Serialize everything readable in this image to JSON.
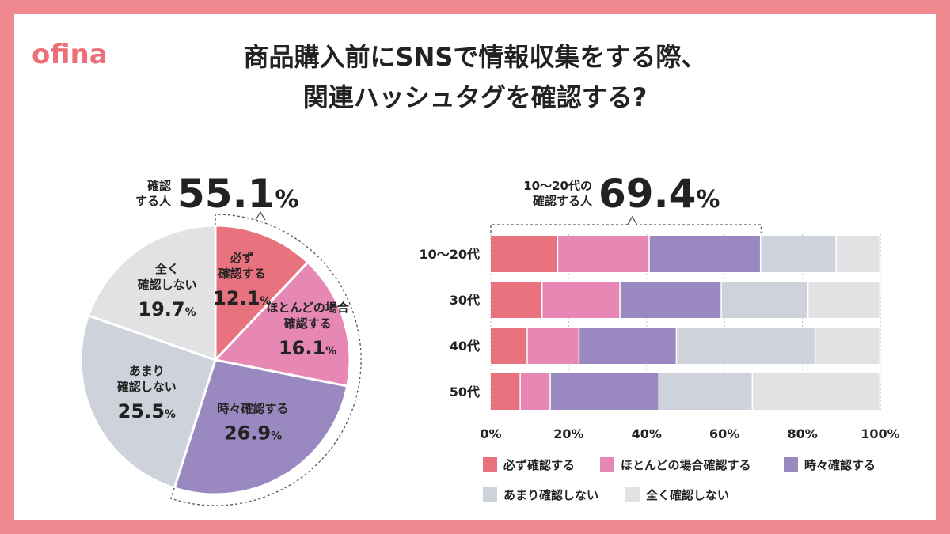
{
  "brand": {
    "logo": "ofina"
  },
  "title": {
    "line1": "商品購入前にSNSで情報収集をする際、",
    "line2": "関連ハッシュタグを確認する?"
  },
  "colors": {
    "frame": "#F08890",
    "panel": "#FFFFFF",
    "logo": "#EB6F79",
    "text": "#222222",
    "always": "#E8737E",
    "mostly": "#E688B3",
    "sometimes": "#9A88C0",
    "rarely": "#CDD2DB",
    "never": "#E2E2E4"
  },
  "pie_callout": {
    "label_line1": "確認",
    "label_line2": "する人",
    "value": "55.1",
    "unit": "%"
  },
  "bar_callout": {
    "label_line1": "10～20代の",
    "label_line2": "確認する人",
    "value": "69.4",
    "unit": "%"
  },
  "chart_data": [
    {
      "type": "pie",
      "title": "",
      "slices": [
        {
          "key": "always",
          "lines": [
            "必ず",
            "確認する"
          ],
          "value": 12.1,
          "value_label": "12.1",
          "unit": "%"
        },
        {
          "key": "mostly",
          "lines": [
            "ほとんどの場合",
            "確認する"
          ],
          "value": 16.1,
          "value_label": "16.1",
          "unit": "%"
        },
        {
          "key": "sometimes",
          "lines": [
            "時々確認する"
          ],
          "value": 26.9,
          "value_label": "26.9",
          "unit": "%"
        },
        {
          "key": "rarely",
          "lines": [
            "あまり",
            "確認しない"
          ],
          "value": 25.5,
          "value_label": "25.5",
          "unit": "%"
        },
        {
          "key": "never",
          "lines": [
            "全く",
            "確認しない"
          ],
          "value": 19.7,
          "value_label": "19.7",
          "unit": "%"
        }
      ]
    },
    {
      "type": "bar",
      "orientation": "horizontal",
      "stacked": true,
      "categories": [
        "10～20代",
        "30代",
        "40代",
        "50代"
      ],
      "series": [
        {
          "key": "always",
          "name": "必ず確認する",
          "values": [
            17.3,
            13.3,
            9.5,
            7.7
          ]
        },
        {
          "key": "mostly",
          "name": "ほとんどの場合確認する",
          "values": [
            23.5,
            20.0,
            13.3,
            7.7
          ]
        },
        {
          "key": "sometimes",
          "name": "時々確認する",
          "values": [
            28.6,
            26.0,
            25.0,
            27.9
          ]
        },
        {
          "key": "rarely",
          "name": "あまり確認しない",
          "values": [
            19.4,
            22.3,
            35.6,
            24.0
          ]
        },
        {
          "key": "never",
          "name": "全く確認しない",
          "values": [
            11.2,
            18.4,
            16.6,
            32.7
          ]
        }
      ],
      "xlim": [
        0,
        100
      ],
      "xticks": [
        "0%",
        "20%",
        "40%",
        "60%",
        "80%",
        "100%"
      ],
      "grid": true,
      "legend_position": "bottom"
    }
  ]
}
